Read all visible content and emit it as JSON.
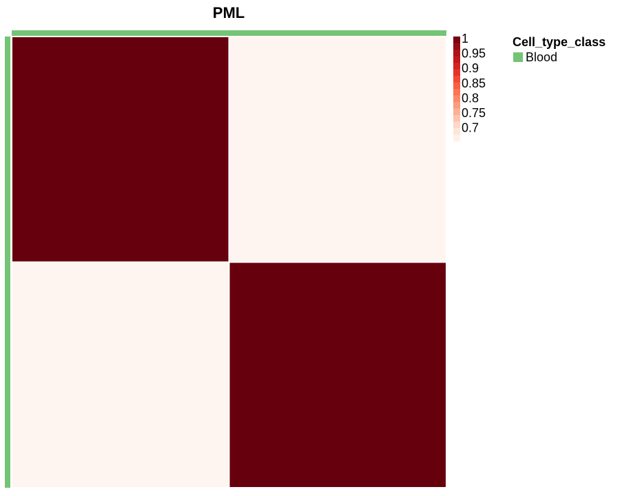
{
  "chart_data": {
    "type": "heatmap",
    "title": "PML",
    "rows": 2,
    "cols": 2,
    "values": [
      [
        1,
        0.68
      ],
      [
        0.68,
        1
      ]
    ],
    "colorbar": {
      "ticks": [
        "1",
        "0.95",
        "0.9",
        "0.85",
        "0.8",
        "0.75",
        "0.7"
      ],
      "tick_values": [
        1,
        0.95,
        0.9,
        0.85,
        0.8,
        0.75,
        0.7
      ],
      "range": [
        0.68,
        1
      ],
      "colors": [
        "#fff5f0",
        "#fee0d2",
        "#fcbba1",
        "#fc9272",
        "#fb6a4a",
        "#ef3b2c",
        "#cb181d",
        "#a50f15",
        "#67000d"
      ]
    },
    "annotation": {
      "title": "Cell_type_class",
      "label": "Blood",
      "color": "#74c476"
    }
  }
}
